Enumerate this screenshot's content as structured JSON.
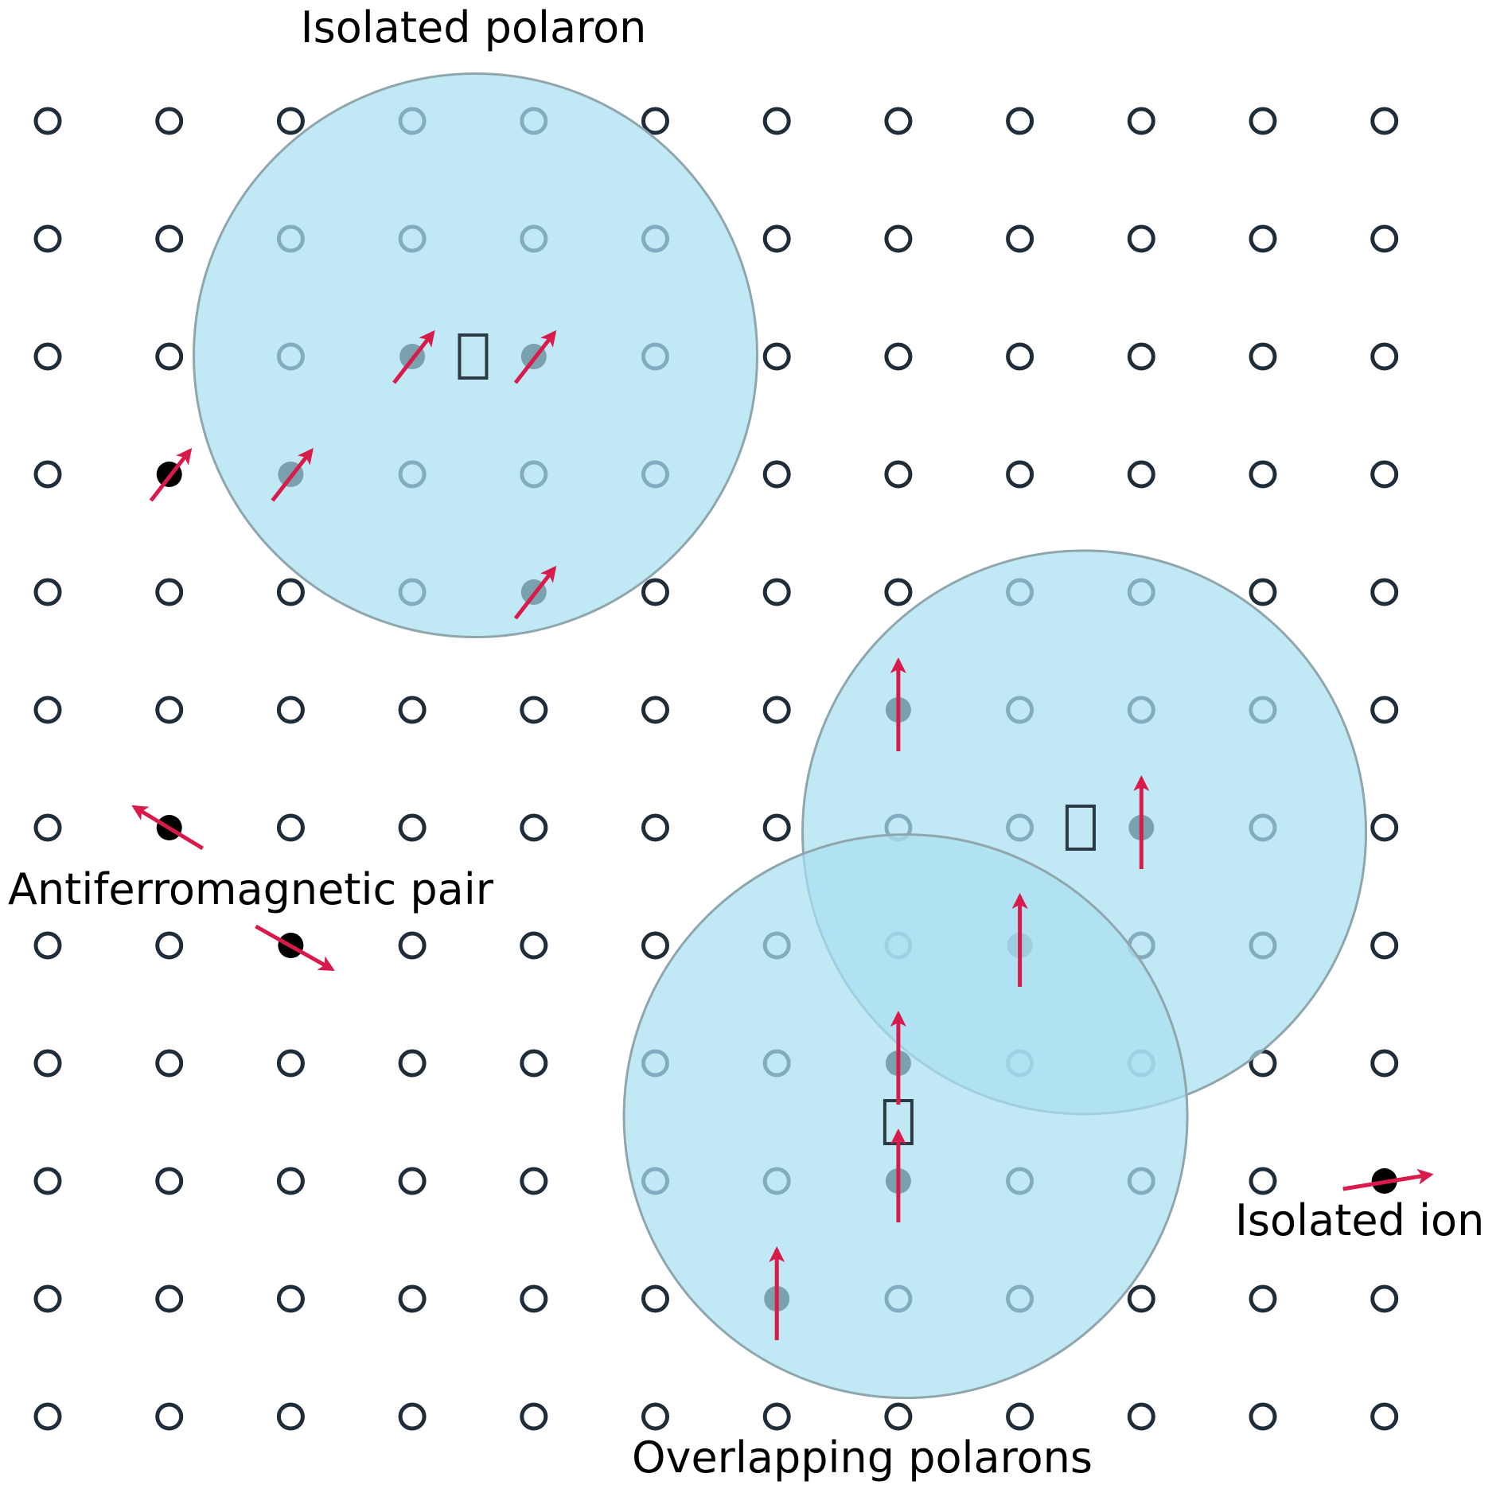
{
  "labels": {
    "isolated_polaron": "Isolated polaron",
    "antiferromagnetic_pair": "Antiferromagnetic pair",
    "isolated_ion": "Isolated ion",
    "overlapping_polarons": "Overlapping polarons"
  },
  "lattice": {
    "cols": 12,
    "rows": 12
  },
  "spins": [
    {
      "col": 3,
      "row": 2,
      "dir": "ne",
      "group": "isolated-polaron"
    },
    {
      "col": 4,
      "row": 2,
      "dir": "ne",
      "group": "isolated-polaron"
    },
    {
      "col": 2,
      "row": 3,
      "dir": "ne",
      "group": "isolated-polaron"
    },
    {
      "col": 4,
      "row": 4,
      "dir": "ne",
      "group": "isolated-polaron"
    },
    {
      "col": 1,
      "row": 3,
      "dir": "ne",
      "group": "free"
    },
    {
      "col": 1,
      "row": 6,
      "dir": "nw",
      "group": "antiferromagnetic-pair"
    },
    {
      "col": 2,
      "row": 7,
      "dir": "se",
      "group": "antiferromagnetic-pair"
    },
    {
      "col": 7,
      "row": 5,
      "dir": "up",
      "group": "overlapping-polarons"
    },
    {
      "col": 9,
      "row": 6,
      "dir": "up",
      "group": "overlapping-polarons"
    },
    {
      "col": 8,
      "row": 7,
      "dir": "up",
      "group": "overlapping-polarons"
    },
    {
      "col": 7,
      "row": 8,
      "dir": "up",
      "group": "overlapping-polarons"
    },
    {
      "col": 7,
      "row": 9,
      "dir": "up",
      "group": "overlapping-polarons"
    },
    {
      "col": 6,
      "row": 10,
      "dir": "up",
      "group": "overlapping-polarons"
    },
    {
      "col": 11,
      "row": 9,
      "dir": "e",
      "group": "isolated-ion"
    }
  ],
  "holes": [
    {
      "col": 3.5,
      "row": 2
    },
    {
      "col": 8.5,
      "row": 6
    },
    {
      "col": 7,
      "row": 8.5
    }
  ],
  "colors": {
    "atom": "#1f2d3a",
    "polaron_fill": "#a9dff1",
    "polaron_stroke": "#8fa6ad",
    "spin_arrow": "#d81b4a",
    "hole_stroke": "#2b3a45"
  }
}
